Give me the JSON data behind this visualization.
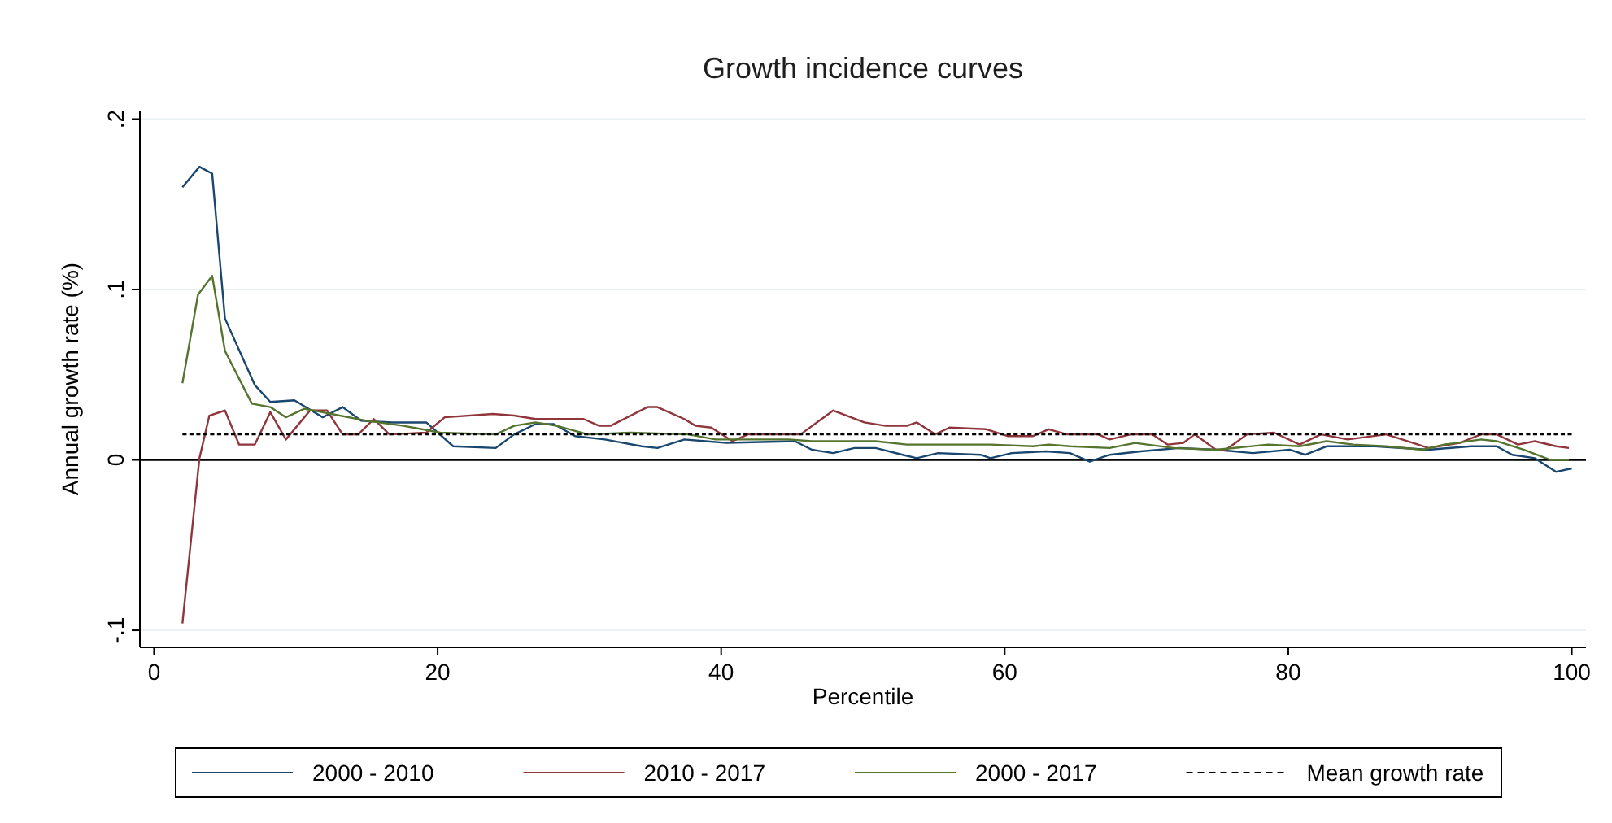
{
  "chart_data": {
    "type": "line",
    "title": "Growth incidence curves",
    "xlabel": "Percentile",
    "ylabel": "Annual growth rate (%)",
    "xlim": [
      -1,
      101
    ],
    "ylim": [
      -0.11,
      0.205
    ],
    "xticks": [
      0,
      20,
      40,
      60,
      80,
      100
    ],
    "yticks": [
      {
        "value": -0.1,
        "label": "-.1"
      },
      {
        "value": 0,
        "label": "0"
      },
      {
        "value": 0.1,
        "label": ".1"
      },
      {
        "value": 0.2,
        "label": ".2"
      }
    ],
    "grid": "y",
    "legend": "bottom",
    "line_style": "solid",
    "ref_lines": [
      {
        "axis": "y",
        "value": 0,
        "color": "#000000"
      }
    ],
    "series": [
      {
        "name": "2000 - 2010",
        "color": "#1a476f",
        "x": [
          2,
          3.2,
          4.1,
          5,
          7.1,
          8.2,
          9.9,
          11.9,
          13.3,
          14.6,
          16.8,
          19.2,
          21.1,
          24.1,
          25.4,
          26.9,
          28.2,
          29.7,
          31.8,
          34.4,
          35.5,
          37.4,
          38.9,
          40.4,
          45.2,
          46.4,
          47.9,
          49.4,
          50.9,
          52.8,
          53.8,
          55.3,
          58.3,
          59,
          60.5,
          62.9,
          64.6,
          66,
          67.4,
          69.6,
          72.3,
          74.9,
          77.5,
          80.1,
          81.2,
          82.7,
          86.1,
          89.9,
          92.9,
          94.7,
          95.8,
          97.4,
          98.9,
          100
        ],
        "values": [
          0.16,
          0.172,
          0.168,
          0.083,
          0.044,
          0.034,
          0.035,
          0.025,
          0.031,
          0.023,
          0.022,
          0.022,
          0.008,
          0.007,
          0.015,
          0.021,
          0.021,
          0.014,
          0.012,
          0.008,
          0.007,
          0.012,
          0.011,
          0.01,
          0.011,
          0.006,
          0.004,
          0.007,
          0.007,
          0.003,
          0.001,
          0.004,
          0.003,
          0.001,
          0.004,
          0.005,
          0.004,
          -0.001,
          0.003,
          0.005,
          0.007,
          0.006,
          0.004,
          0.006,
          0.003,
          0.008,
          0.008,
          0.006,
          0.008,
          0.008,
          0.003,
          0.001,
          -0.007,
          -0.005
        ]
      },
      {
        "name": "2010 - 2017",
        "color": "#90353b",
        "x": [
          2,
          3.2,
          3.9,
          5,
          6,
          7.1,
          8.2,
          9.3,
          11,
          12.2,
          13.3,
          14.4,
          15.5,
          16.6,
          19.2,
          20.5,
          23.9,
          25.4,
          26.9,
          30.3,
          31.4,
          32.2,
          34.8,
          35.5,
          37.4,
          38.2,
          39.3,
          40.8,
          41.9,
          45.6,
          47.9,
          50.1,
          51.6,
          53.1,
          53.8,
          55.1,
          56.1,
          58.7,
          60.2,
          62,
          63.1,
          64.4,
          66.6,
          67.4,
          68.9,
          70.4,
          71.5,
          72.6,
          73.4,
          74.9,
          75.6,
          77.1,
          79,
          80.8,
          82.3,
          84.2,
          86.9,
          88.4,
          89.9,
          92.1,
          93.6,
          94.7,
          96.2,
          97.4,
          98.9,
          99.8
        ],
        "values": [
          -0.096,
          0.001,
          0.026,
          0.029,
          0.009,
          0.009,
          0.028,
          0.012,
          0.029,
          0.029,
          0.015,
          0.015,
          0.024,
          0.015,
          0.016,
          0.025,
          0.027,
          0.026,
          0.024,
          0.024,
          0.02,
          0.02,
          0.031,
          0.031,
          0.024,
          0.02,
          0.019,
          0.011,
          0.015,
          0.015,
          0.029,
          0.022,
          0.02,
          0.02,
          0.022,
          0.015,
          0.019,
          0.018,
          0.014,
          0.014,
          0.018,
          0.015,
          0.015,
          0.012,
          0.015,
          0.015,
          0.009,
          0.01,
          0.015,
          0.006,
          0.006,
          0.015,
          0.016,
          0.009,
          0.015,
          0.012,
          0.015,
          0.011,
          0.007,
          0.01,
          0.015,
          0.015,
          0.009,
          0.011,
          0.008,
          0.007
        ]
      },
      {
        "name": "2000 - 2017",
        "color": "#55752f",
        "x": [
          2,
          3.1,
          4.1,
          5,
          6.9,
          8.2,
          9.3,
          10.6,
          12.5,
          15,
          17.6,
          20.2,
          24.1,
          25.4,
          26.9,
          28.4,
          30.6,
          33.6,
          37.7,
          39.6,
          41.1,
          44.8,
          46.4,
          50.9,
          53.1,
          59,
          62,
          63.1,
          64.6,
          67.4,
          69.2,
          71.9,
          74.9,
          78.6,
          80.8,
          82.7,
          84.6,
          86.9,
          89.5,
          91,
          93.6,
          94.7,
          96.6,
          98.5,
          99.8
        ],
        "values": [
          0.045,
          0.097,
          0.108,
          0.064,
          0.033,
          0.031,
          0.025,
          0.03,
          0.027,
          0.023,
          0.02,
          0.016,
          0.015,
          0.02,
          0.022,
          0.02,
          0.015,
          0.016,
          0.015,
          0.012,
          0.012,
          0.012,
          0.011,
          0.011,
          0.009,
          0.009,
          0.008,
          0.009,
          0.008,
          0.007,
          0.01,
          0.007,
          0.006,
          0.009,
          0.008,
          0.011,
          0.009,
          0.008,
          0.006,
          0.009,
          0.012,
          0.011,
          0.006,
          0,
          0
        ]
      },
      {
        "name": "Mean growth rate",
        "color": "#000000",
        "line_style": "dashed",
        "x": [
          2,
          100
        ],
        "values": [
          0.015,
          0.015
        ]
      }
    ]
  }
}
